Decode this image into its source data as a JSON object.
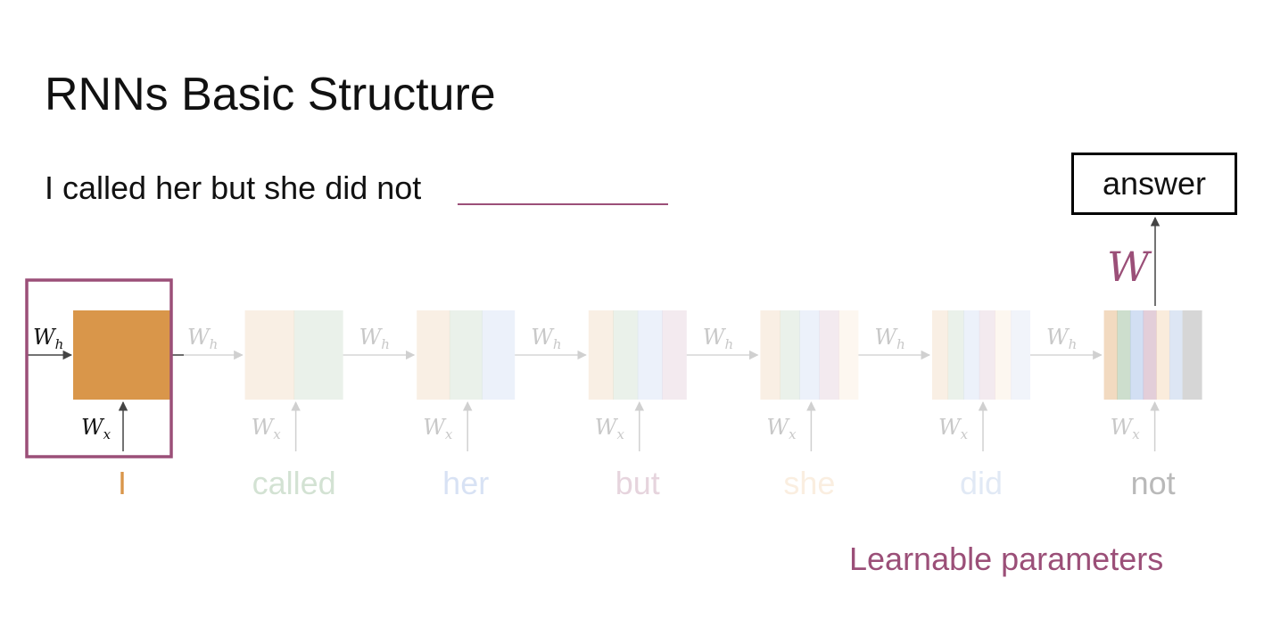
{
  "slide": {
    "title": "RNNs Basic Structure",
    "sentence": "I called her but she did not",
    "answer_label": "answer",
    "output_weight_label": "W",
    "hidden_weight_label": "W",
    "hidden_weight_subscript": "h",
    "input_weight_label": "W",
    "input_weight_subscript": "x",
    "caption": "Learnable parameters"
  },
  "words": [
    {
      "text": "I",
      "color": "#d9964a"
    },
    {
      "text": "called",
      "color": "#6fa070"
    },
    {
      "text": "her",
      "color": "#7fa2dd"
    },
    {
      "text": "but",
      "color": "#b07292"
    },
    {
      "text": "she",
      "color": "#f0c89a"
    },
    {
      "text": "did",
      "color": "#9fb8e0"
    },
    {
      "text": "not",
      "color": "#b9b9b9"
    }
  ],
  "highlight_color": "#9b4f78",
  "first_cell_color": "#d9964a",
  "last_cell_color": "#d6d6d6",
  "faded_weight_color": "#c8c8c8"
}
